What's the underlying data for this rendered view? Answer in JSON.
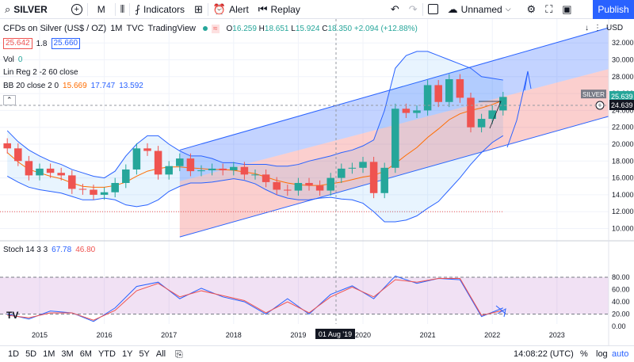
{
  "toolbar": {
    "symbol": "SILVER",
    "interval": "M",
    "indicators_label": "Indicators",
    "alert_label": "Alert",
    "replay_label": "Replay",
    "layout_name": "Unnamed",
    "publish_label": "Publish"
  },
  "legend": {
    "title": "CFDs on Silver (US$ / OZ)",
    "interval": "1M",
    "source": "TVC",
    "brand": "TradingView",
    "open_label": "O",
    "open": "16.259",
    "high_label": "H",
    "high": "18.651",
    "low_label": "L",
    "low": "15.924",
    "close_label": "C",
    "close": "18.350",
    "change": "+2.094 (+12.88%)",
    "bid": "25.642",
    "spread": "1.8",
    "ask": "25.660",
    "vol_label": "Vol",
    "vol_value": "0",
    "linreg_label": "Lin Reg 2 -2 60 close",
    "bb_label": "BB 20 close 2 0",
    "bb_basis": "15.669",
    "bb_upper": "17.747",
    "bb_lower": "13.592",
    "stoch_label": "Stoch 14 3 3",
    "stoch_k": "67.78",
    "stoch_d": "46.80"
  },
  "price_scale": {
    "currency": "USD",
    "ticks": [
      "32.000",
      "30.000",
      "28.000",
      "26.000",
      "24.000",
      "22.000",
      "20.000",
      "18.000",
      "16.000",
      "14.000",
      "12.000",
      "10.000"
    ],
    "symbol_tag": "SILVER",
    "last_price": "25.639",
    "cursor_price": "24.639"
  },
  "stoch_scale": {
    "ticks": [
      "80.00",
      "60.00",
      "40.00",
      "20.00",
      "0.00"
    ]
  },
  "time_axis": {
    "ticks": [
      "2015",
      "2016",
      "2017",
      "2018",
      "2019",
      "2020",
      "2021",
      "2022",
      "2023"
    ],
    "crosshair_label": "01 Aug '19"
  },
  "bottombar": {
    "ranges": [
      "1D",
      "5D",
      "1M",
      "3M",
      "6M",
      "YTD",
      "1Y",
      "5Y",
      "All"
    ],
    "clock": "14:08:22 (UTC)",
    "percent": "%",
    "log": "log",
    "auto": "auto"
  },
  "colors": {
    "up": "#26a69a",
    "down": "#ef5350",
    "bb_line": "#2962ff",
    "basis": "#ff6d00",
    "channel_upper": "#2962ff",
    "channel_lower": "#ef5350",
    "stoch_k": "#2962ff",
    "stoch_d": "#ef5350",
    "accent": "#2962ff"
  },
  "chart_data": [
    {
      "type": "candlestick",
      "title": "CFDs on Silver (US$ / OZ)",
      "ylim": [
        9,
        33
      ],
      "x": [
        "2014-07",
        "2014-09",
        "2014-11",
        "2015-01",
        "2015-03",
        "2015-05",
        "2015-07",
        "2015-09",
        "2015-11",
        "2016-01",
        "2016-03",
        "2016-05",
        "2016-07",
        "2016-09",
        "2016-11",
        "2017-01",
        "2017-03",
        "2017-05",
        "2017-07",
        "2017-09",
        "2017-11",
        "2018-01",
        "2018-03",
        "2018-05",
        "2018-07",
        "2018-09",
        "2018-11",
        "2019-01",
        "2019-03",
        "2019-05",
        "2019-07",
        "2019-09",
        "2019-11",
        "2020-01",
        "2020-03",
        "2020-05",
        "2020-07",
        "2020-09",
        "2020-11",
        "2021-01",
        "2021-03",
        "2021-05",
        "2021-07",
        "2021-09",
        "2021-11",
        "2022-01",
        "2022-03"
      ],
      "close": [
        19.5,
        18.0,
        16.3,
        17.1,
        16.6,
        16.3,
        14.7,
        14.6,
        14.0,
        14.3,
        15.4,
        17.0,
        19.5,
        19.2,
        16.4,
        17.4,
        18.3,
        16.8,
        16.9,
        17.1,
        16.9,
        17.3,
        16.4,
        16.4,
        15.5,
        14.6,
        14.5,
        15.4,
        15.1,
        14.5,
        16.0,
        17.1,
        17.2,
        17.9,
        14.2,
        17.2,
        24.2,
        23.7,
        24.0,
        27.0,
        25.0,
        27.7,
        25.5,
        22.0,
        23.0,
        24.0,
        25.6
      ],
      "bb_upper": [
        21.6,
        20.3,
        19.3,
        18.6,
        18.0,
        17.6,
        17.0,
        16.6,
        16.2,
        16.0,
        16.8,
        18.6,
        20.0,
        21.0,
        21.0,
        20.0,
        19.2,
        18.6,
        18.6,
        18.3,
        17.8,
        17.8,
        17.6,
        17.6,
        17.6,
        17.4,
        17.4,
        17.6,
        18.0,
        18.3,
        18.6,
        19.0,
        19.3,
        19.8,
        20.5,
        24.0,
        29.0,
        30.5,
        31.0,
        31.0,
        30.5,
        30.0,
        29.5,
        29.0,
        28.0,
        27.8,
        27.6
      ],
      "bb_basis": [
        19.0,
        17.9,
        17.0,
        16.6,
        16.2,
        15.9,
        15.4,
        15.0,
        14.9,
        14.9,
        15.1,
        15.5,
        16.2,
        16.8,
        17.1,
        17.3,
        17.3,
        17.2,
        17.1,
        17.0,
        17.0,
        16.9,
        16.7,
        16.5,
        16.1,
        15.7,
        15.4,
        15.2,
        15.1,
        15.1,
        15.3,
        15.5,
        15.8,
        16.1,
        16.3,
        16.8,
        17.7,
        18.7,
        19.6,
        20.8,
        21.8,
        22.9,
        23.6,
        24.0,
        24.3,
        24.7,
        25.2
      ],
      "bb_lower": [
        16.2,
        15.5,
        14.9,
        14.6,
        14.4,
        14.2,
        13.8,
        13.4,
        13.4,
        13.6,
        13.4,
        12.8,
        12.6,
        12.8,
        13.4,
        14.4,
        15.0,
        15.4,
        15.4,
        15.5,
        15.7,
        15.9,
        15.7,
        15.3,
        14.6,
        14.0,
        13.6,
        13.4,
        13.4,
        13.6,
        13.7,
        13.5,
        13.4,
        13.0,
        12.0,
        10.8,
        10.8,
        11.0,
        11.5,
        12.4,
        13.2,
        14.6,
        16.0,
        17.6,
        19.0,
        20.2,
        21.0
      ]
    },
    {
      "type": "line",
      "title": "Stoch 14 3 3",
      "ylim": [
        0,
        100
      ],
      "x": [
        "2014-07",
        "2014-11",
        "2015-03",
        "2015-07",
        "2015-11",
        "2016-03",
        "2016-07",
        "2016-11",
        "2017-03",
        "2017-07",
        "2017-11",
        "2018-03",
        "2018-07",
        "2018-11",
        "2019-03",
        "2019-07",
        "2019-11",
        "2020-03",
        "2020-07",
        "2020-11",
        "2021-03",
        "2021-07",
        "2021-11",
        "2022-03"
      ],
      "series": [
        {
          "name": "%K",
          "values": [
            20,
            12,
            25,
            22,
            8,
            30,
            65,
            72,
            45,
            62,
            48,
            40,
            20,
            45,
            20,
            52,
            66,
            45,
            82,
            70,
            78,
            76,
            16,
            30
          ]
        },
        {
          "name": "%D",
          "values": [
            18,
            14,
            22,
            22,
            10,
            26,
            58,
            70,
            48,
            58,
            50,
            42,
            22,
            40,
            22,
            48,
            64,
            48,
            76,
            72,
            78,
            78,
            18,
            26
          ]
        }
      ]
    }
  ]
}
